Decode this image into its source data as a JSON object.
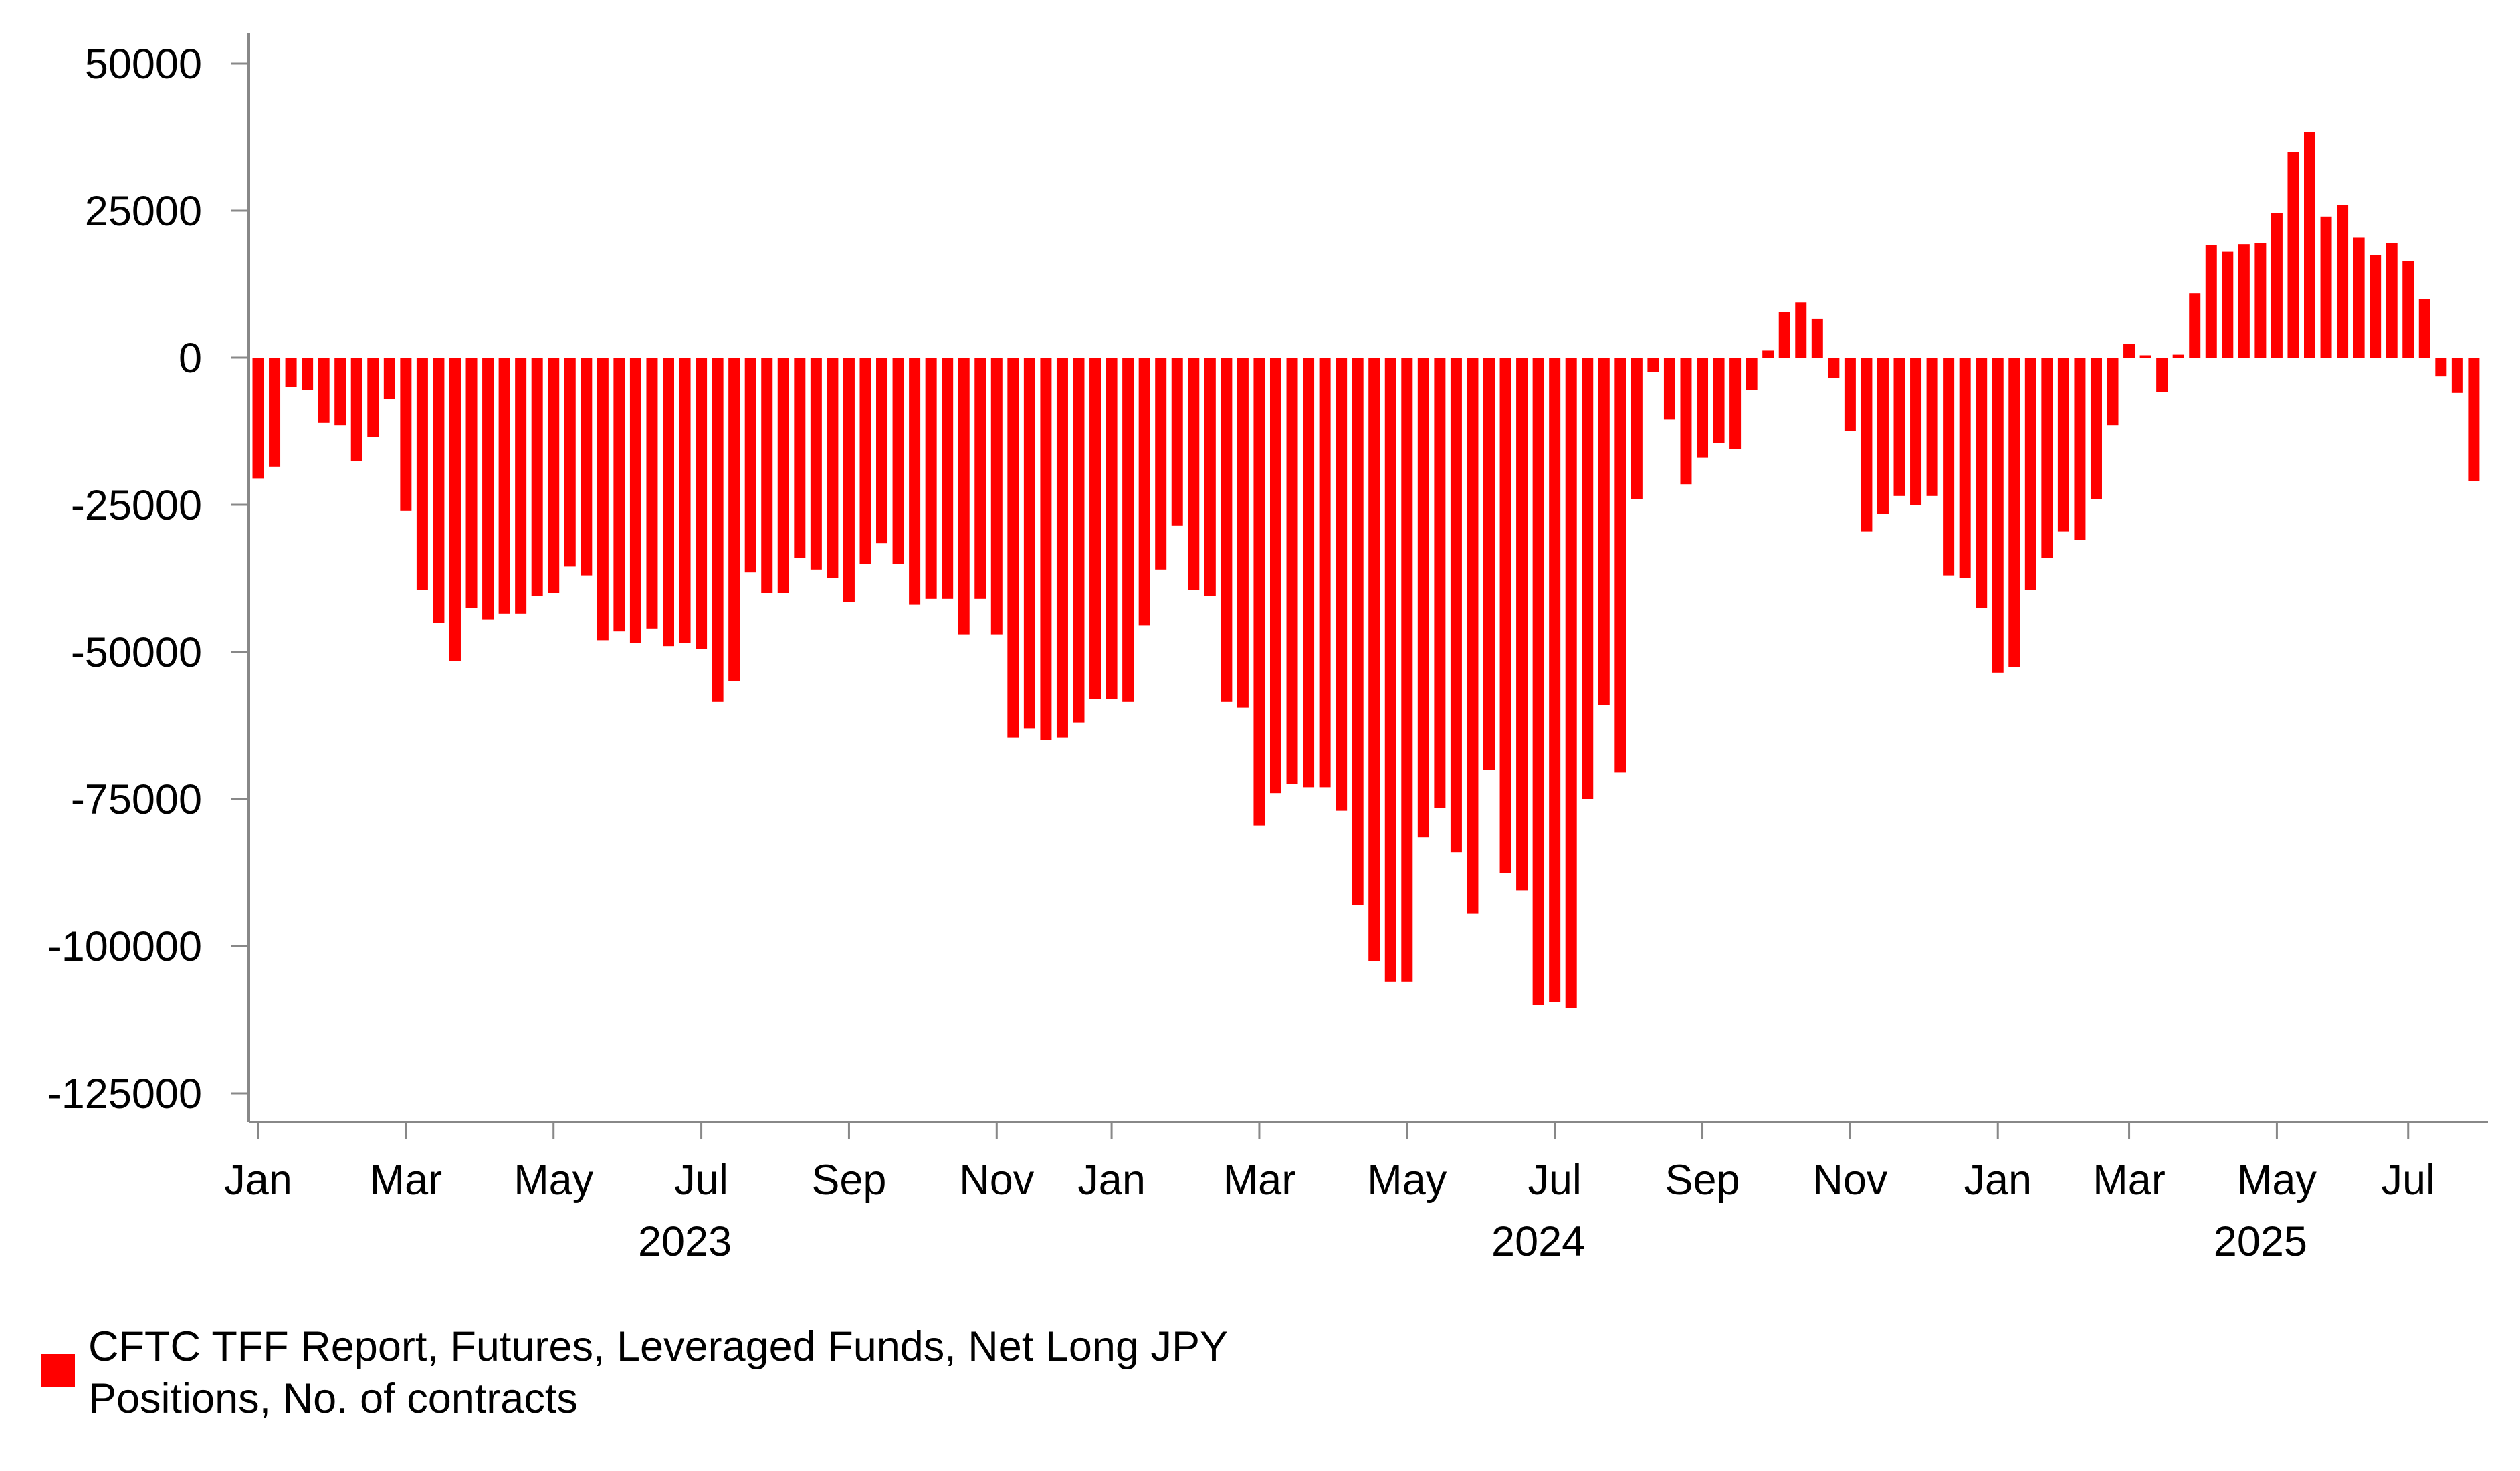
{
  "chart_data": {
    "type": "bar",
    "title": "",
    "xlabel": "",
    "ylabel": "",
    "ylim": [
      -130000,
      50000
    ],
    "y_ticks": [
      50000,
      25000,
      0,
      -25000,
      -50000,
      -75000,
      -100000,
      -125000
    ],
    "y_tick_labels": [
      "50000",
      "25000",
      "0",
      "-25000",
      "-50000",
      "-75000",
      "-100000",
      "-125000"
    ],
    "x_tick_labels": [
      {
        "label": "Jan",
        "week": 0
      },
      {
        "label": "Mar",
        "week": 9
      },
      {
        "label": "May",
        "week": 18
      },
      {
        "label": "Jul",
        "week": 27
      },
      {
        "label": "Sep",
        "week": 36
      },
      {
        "label": "Nov",
        "week": 45
      },
      {
        "label": "Jan",
        "week": 52
      },
      {
        "label": "Mar",
        "week": 61
      },
      {
        "label": "May",
        "week": 70
      },
      {
        "label": "Jul",
        "week": 79
      },
      {
        "label": "Sep",
        "week": 88
      },
      {
        "label": "Nov",
        "week": 97
      },
      {
        "label": "Jan",
        "week": 106
      },
      {
        "label": "Mar",
        "week": 114
      },
      {
        "label": "May",
        "week": 123
      },
      {
        "label": "Jul",
        "week": 131
      }
    ],
    "year_labels": [
      {
        "label": "2023",
        "week": 26
      },
      {
        "label": "2024",
        "week": 78
      },
      {
        "label": "2025",
        "week": 122
      }
    ],
    "series": [
      {
        "name": "CFTC TFF Report, Futures, Leveraged Funds, Net Long JPY Positions, No. of contracts",
        "color": "#ff0000",
        "values": [
          -20500,
          -18500,
          -5000,
          -5500,
          -11000,
          -11500,
          -17500,
          -13500,
          -7000,
          -26000,
          -39500,
          -45000,
          -51500,
          -42500,
          -44500,
          -43500,
          -43500,
          -40500,
          -40000,
          -35500,
          -37000,
          -48000,
          -46500,
          -48500,
          -46000,
          -49000,
          -48500,
          -49500,
          -58500,
          -55000,
          -36500,
          -40000,
          -40000,
          -34000,
          -36000,
          -37500,
          -41500,
          -35000,
          -31500,
          -35000,
          -42000,
          -41000,
          -41000,
          -47000,
          -41000,
          -47000,
          -64500,
          -63000,
          -65000,
          -64500,
          -62000,
          -58000,
          -58000,
          -58500,
          -45500,
          -36000,
          -28500,
          -39500,
          -40500,
          -58500,
          -59500,
          -79500,
          -74000,
          -72500,
          -73000,
          -73000,
          -77000,
          -93000,
          -102500,
          -106000,
          -106000,
          -81500,
          -76500,
          -84000,
          -94500,
          -70000,
          -87500,
          -90500,
          -110000,
          -109500,
          -110500,
          -75000,
          -59000,
          -70500,
          -24000,
          -2500,
          -10500,
          -21500,
          -17000,
          -14500,
          -15500,
          -5500,
          1200,
          7800,
          9400,
          6600,
          -3500,
          -12500,
          -29500,
          -26500,
          -23500,
          -25000,
          -23500,
          -37000,
          -37500,
          -42500,
          -53500,
          -52500,
          -39500,
          -34000,
          -29500,
          -31000,
          -24000,
          -11500,
          2300,
          400,
          -5800,
          500,
          11000,
          19100,
          18000,
          19300,
          19500,
          24600,
          34900,
          38400,
          24000,
          26000,
          20400,
          17500,
          19500,
          16400,
          10000,
          -3200,
          -6000,
          -21000
        ]
      }
    ]
  },
  "legend": {
    "line1": "CFTC TFF Report, Futures, Leveraged Funds, Net Long JPY",
    "line2": "Positions, No. of contracts"
  }
}
